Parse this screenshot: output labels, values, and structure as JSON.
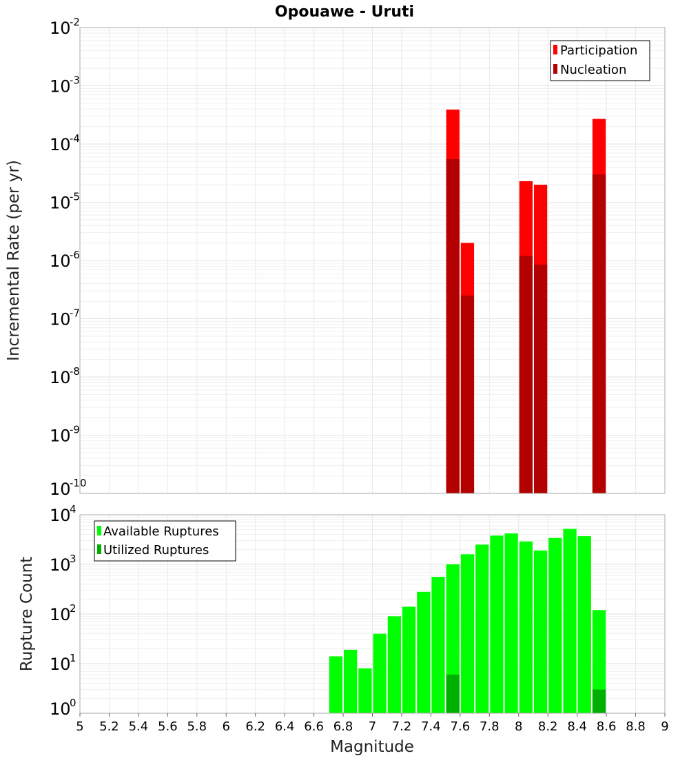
{
  "chart_data": [
    {
      "type": "bar",
      "title": "Opouawe - Uruti",
      "xlabel": "",
      "ylabel": "Incremental Rate (per yr)",
      "yscale": "log",
      "ylim_exponents": [
        -10,
        -2
      ],
      "xlim": [
        5,
        9
      ],
      "bar_width": 0.1,
      "grid": true,
      "legend_position": "top-right",
      "series": [
        {
          "name": "Participation",
          "color": "#ff0000",
          "points": [
            [
              7.55,
              0.00039
            ],
            [
              7.65,
              2e-06
            ],
            [
              8.05,
              2.3e-05
            ],
            [
              8.15,
              2e-05
            ],
            [
              8.55,
              0.00027
            ]
          ]
        },
        {
          "name": "Nucleation",
          "color": "#b30000",
          "points": [
            [
              7.55,
              5.5e-05
            ],
            [
              7.65,
              2.5e-07
            ],
            [
              8.05,
              1.2e-06
            ],
            [
              8.15,
              8.5e-07
            ],
            [
              8.55,
              3e-05
            ]
          ]
        }
      ]
    },
    {
      "type": "bar",
      "title": "",
      "xlabel": "Magnitude",
      "ylabel": "Rupture Count",
      "yscale": "log",
      "ylim_exponents": [
        0,
        4
      ],
      "xlim": [
        5,
        9
      ],
      "bar_width": 0.1,
      "grid": true,
      "legend_position": "top-left",
      "series": [
        {
          "name": "Available Ruptures",
          "color": "#00ff00",
          "points": [
            [
              6.75,
              14
            ],
            [
              6.85,
              19
            ],
            [
              6.95,
              8
            ],
            [
              7.05,
              40
            ],
            [
              7.15,
              90
            ],
            [
              7.25,
              140
            ],
            [
              7.35,
              280
            ],
            [
              7.45,
              560
            ],
            [
              7.55,
              1000
            ],
            [
              7.65,
              1600
            ],
            [
              7.75,
              2500
            ],
            [
              7.85,
              3800
            ],
            [
              7.95,
              4200
            ],
            [
              8.05,
              2900
            ],
            [
              8.15,
              1900
            ],
            [
              8.25,
              3400
            ],
            [
              8.35,
              5200
            ],
            [
              8.45,
              3700
            ],
            [
              8.55,
              120
            ]
          ]
        },
        {
          "name": "Utilized Ruptures",
          "color": "#00b000",
          "points": [
            [
              7.55,
              6
            ],
            [
              7.65,
              1
            ],
            [
              8.05,
              1
            ],
            [
              8.15,
              1
            ],
            [
              8.55,
              3
            ]
          ]
        }
      ]
    }
  ],
  "x_ticks": [
    "5",
    "5.2",
    "5.4",
    "5.6",
    "5.8",
    "6",
    "6.2",
    "6.4",
    "6.6",
    "6.8",
    "7",
    "7.2",
    "7.4",
    "7.6",
    "7.8",
    "8",
    "8.2",
    "8.4",
    "8.6",
    "8.8",
    "9"
  ]
}
